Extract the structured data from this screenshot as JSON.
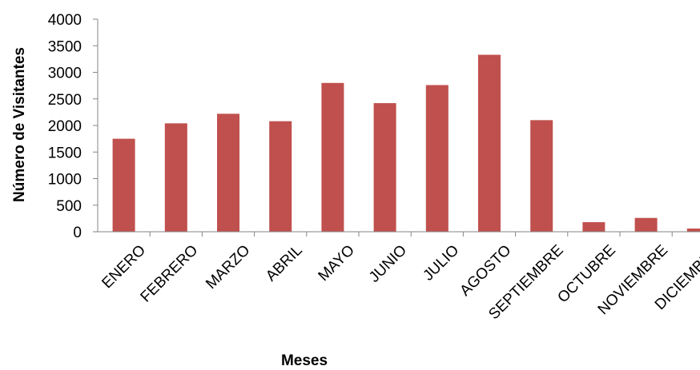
{
  "chart_data": {
    "type": "bar",
    "categories": [
      "ENERO",
      "FEBRERO",
      "MARZO",
      "ABRIL",
      "MAYO",
      "JUNIO",
      "JULIO",
      "AGOSTO",
      "SEPTIEMBRE",
      "OCTUBRE",
      "NOVIEMBRE",
      "DICIEMBRE"
    ],
    "values": [
      1750,
      2040,
      2220,
      2080,
      2800,
      2420,
      2760,
      3330,
      2100,
      180,
      260,
      60
    ],
    "xlabel": "Meses",
    "ylabel": "Número de Visitantes",
    "ylim": [
      0,
      4000
    ],
    "yticks": [
      0,
      500,
      1000,
      1500,
      2000,
      2500,
      3000,
      3500,
      4000
    ],
    "grid": false,
    "legend": "none",
    "colors": {
      "bar": "#C0504D",
      "axis": "#868686"
    }
  }
}
